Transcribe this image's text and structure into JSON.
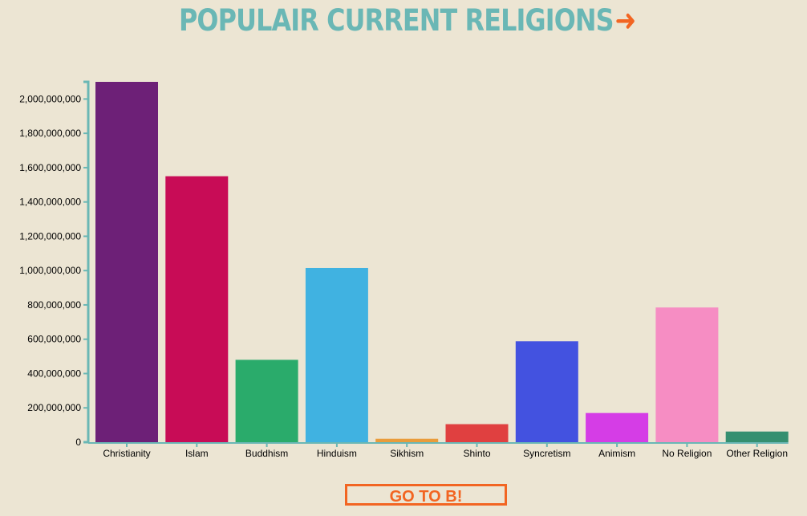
{
  "page": {
    "title": "POPULAIR CURRENT RELIGIONS",
    "title_arrow": "➜",
    "go_button": "GO TO B!"
  },
  "colors": {
    "background": "#ece5d3",
    "title": "#6ab7b5",
    "arrow": "#f26522",
    "axis": "#6ab7b5",
    "button": "#f26522"
  },
  "chart_data": {
    "type": "bar",
    "title": "POPULAIR CURRENT RELIGIONS",
    "xlabel": "",
    "ylabel": "",
    "ylim": [
      0,
      2100000000
    ],
    "yticks": [
      0,
      200000000,
      400000000,
      600000000,
      800000000,
      1000000000,
      1200000000,
      1400000000,
      1600000000,
      1800000000,
      2000000000
    ],
    "ytick_labels": [
      "0",
      "200,000,000",
      "400,000,000",
      "600,000,000",
      "800,000,000",
      "1,000,000,000",
      "1,200,000,000",
      "1,400,000,000",
      "1,600,000,000",
      "1,800,000,000",
      "2,000,000,000"
    ],
    "grid": false,
    "categories": [
      "Christianity",
      "Islam",
      "Buddhism",
      "Hinduism",
      "Sikhism",
      "Shinto",
      "Syncretism",
      "Animism",
      "No Religion",
      "Other Religion"
    ],
    "values": [
      2100000000,
      1550000000,
      480000000,
      1015000000,
      20000000,
      105000000,
      588000000,
      170000000,
      785000000,
      62000000
    ],
    "bar_colors": [
      "#6d2077",
      "#c80c56",
      "#2aab6b",
      "#40b2e1",
      "#e99c3b",
      "#e04040",
      "#4352e0",
      "#d53de6",
      "#f68dc3",
      "#358f70"
    ]
  }
}
